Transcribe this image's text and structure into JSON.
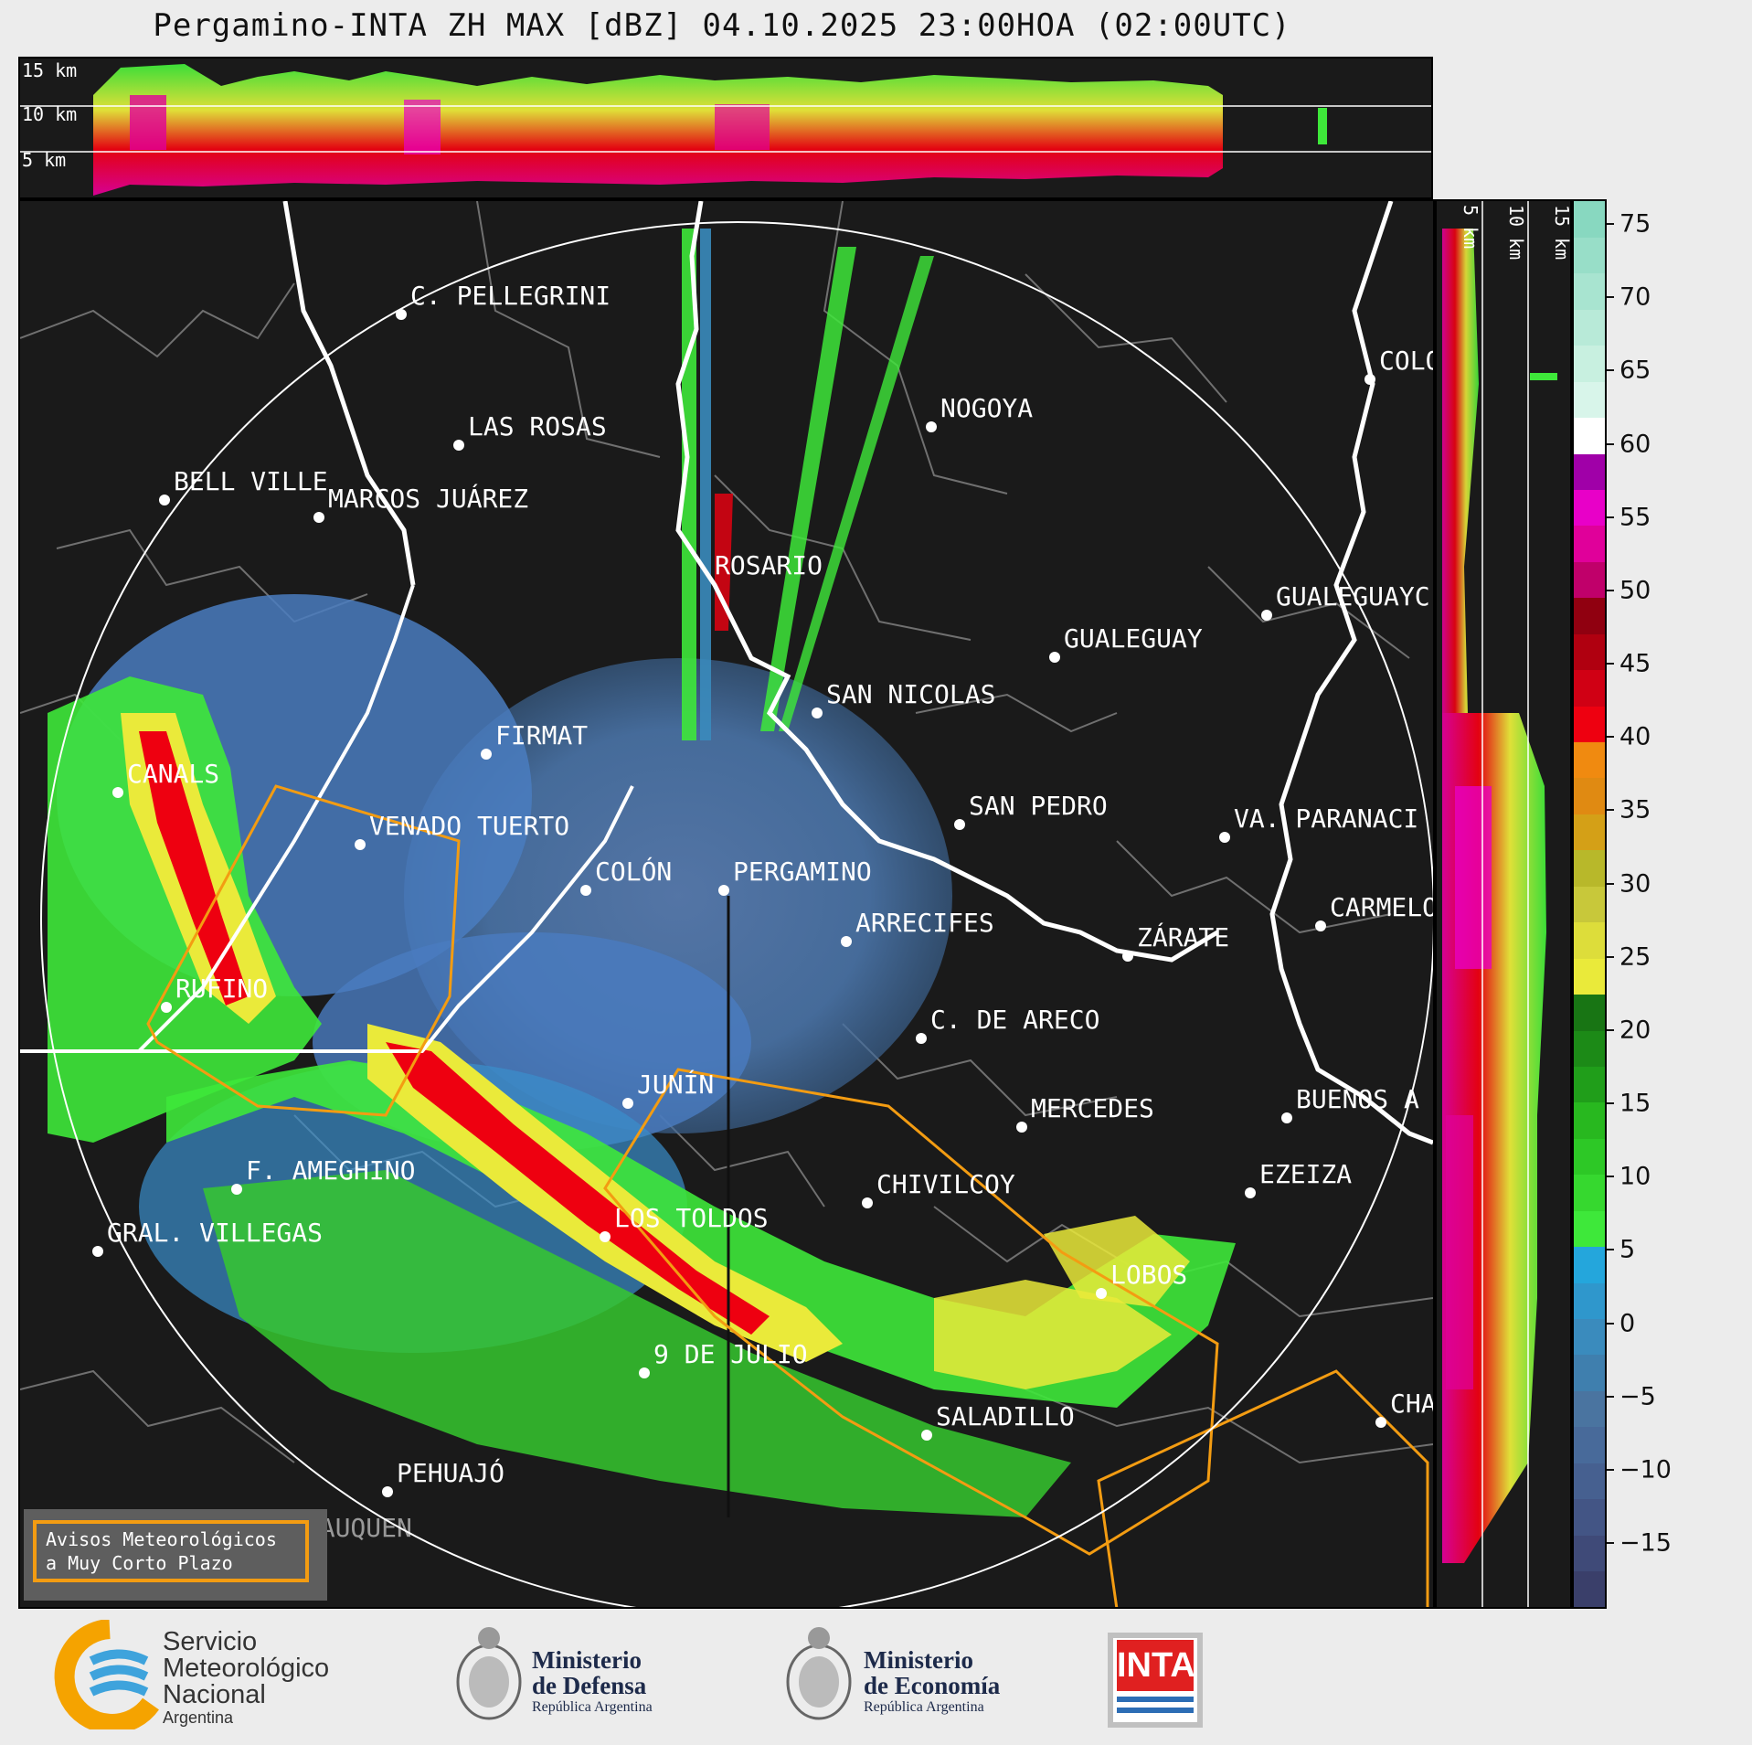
{
  "title": "Pergamino-INTA ZH MAX [dBZ] 04.10.2025 23:00HOA (02:00UTC)",
  "top_panel": {
    "height_labels": [
      "15 km",
      "10 km",
      "5 km"
    ]
  },
  "right_panel": {
    "height_labels": [
      "5 km",
      "10 km",
      "15 km"
    ]
  },
  "colorbar": {
    "ticks": [
      "75",
      "70",
      "65",
      "60",
      "55",
      "50",
      "45",
      "40",
      "35",
      "30",
      "25",
      "20",
      "15",
      "10",
      "5",
      "0",
      "−5",
      "−10",
      "−15"
    ],
    "colors": [
      "#3a3f6a",
      "#3f4a78",
      "#435585",
      "#466090",
      "#486a9a",
      "#4a74a0",
      "#3f7fae",
      "#3a8bbd",
      "#2f97cc",
      "#24a6dc",
      "#3ee83a",
      "#36d82f",
      "#2dc826",
      "#28b81f",
      "#209e1a",
      "#1c8a17",
      "#187514",
      "#eaea3a",
      "#dddd3a",
      "#c8c83a",
      "#b8b82a",
      "#d4a017",
      "#e08a12",
      "#f08a10",
      "#ee0010",
      "#d00014",
      "#b00010",
      "#900010",
      "#c0006a",
      "#e0009a",
      "#e800c8",
      "#a000a8",
      "#ffffff",
      "#d8f5ea",
      "#c8f0e0",
      "#b8ead8",
      "#a8e4d0",
      "#98dec8",
      "#88d8c0"
    ]
  },
  "cities": [
    {
      "name": "C. PELLEGRINI"
    },
    {
      "name": "LAS ROSAS"
    },
    {
      "name": "NOGOYA"
    },
    {
      "name": "BELL VILLE"
    },
    {
      "name": "MARCOS JUÁREZ"
    },
    {
      "name": "COLO"
    },
    {
      "name": "ROSARIO"
    },
    {
      "name": "GUALEGUAYC"
    },
    {
      "name": "GUALEGUAY"
    },
    {
      "name": "SAN NICOLAS"
    },
    {
      "name": "FIRMAT"
    },
    {
      "name": "CANALS"
    },
    {
      "name": "SAN PEDRO"
    },
    {
      "name": "VENADO TUERTO"
    },
    {
      "name": "VA. PARANACI"
    },
    {
      "name": "COLÓN"
    },
    {
      "name": "PERGAMINO"
    },
    {
      "name": "CARMELO"
    },
    {
      "name": "ARRECIFES"
    },
    {
      "name": "ZÁRATE"
    },
    {
      "name": "RUFINO"
    },
    {
      "name": "C. DE ARECO"
    },
    {
      "name": "JUNÍN"
    },
    {
      "name": "MERCEDES"
    },
    {
      "name": "BUENOS A"
    },
    {
      "name": "F. AMEGHINO"
    },
    {
      "name": "CHIVILCOY"
    },
    {
      "name": "EZEIZA"
    },
    {
      "name": "GRAL. VILLEGAS"
    },
    {
      "name": "LOS TOLDOS"
    },
    {
      "name": "LOBOS"
    },
    {
      "name": "9 DE JULIO"
    },
    {
      "name": "SALADILLO"
    },
    {
      "name": "CHA"
    },
    {
      "name": "PEHUAJÓ"
    },
    {
      "name": "TRENQUE LAUQUEN"
    }
  ],
  "warning_box": {
    "line1": "Avisos Meteorológicos",
    "line2": "a Muy Corto Plazo"
  },
  "logos": {
    "smn": [
      "Servicio",
      "Meteorológico",
      "Nacional",
      "Argentina"
    ],
    "defensa": [
      "Ministerio",
      "de Defensa",
      "República Argentina"
    ],
    "economia": [
      "Ministerio",
      "de Economía",
      "República Argentina"
    ],
    "inta": "INTA"
  }
}
